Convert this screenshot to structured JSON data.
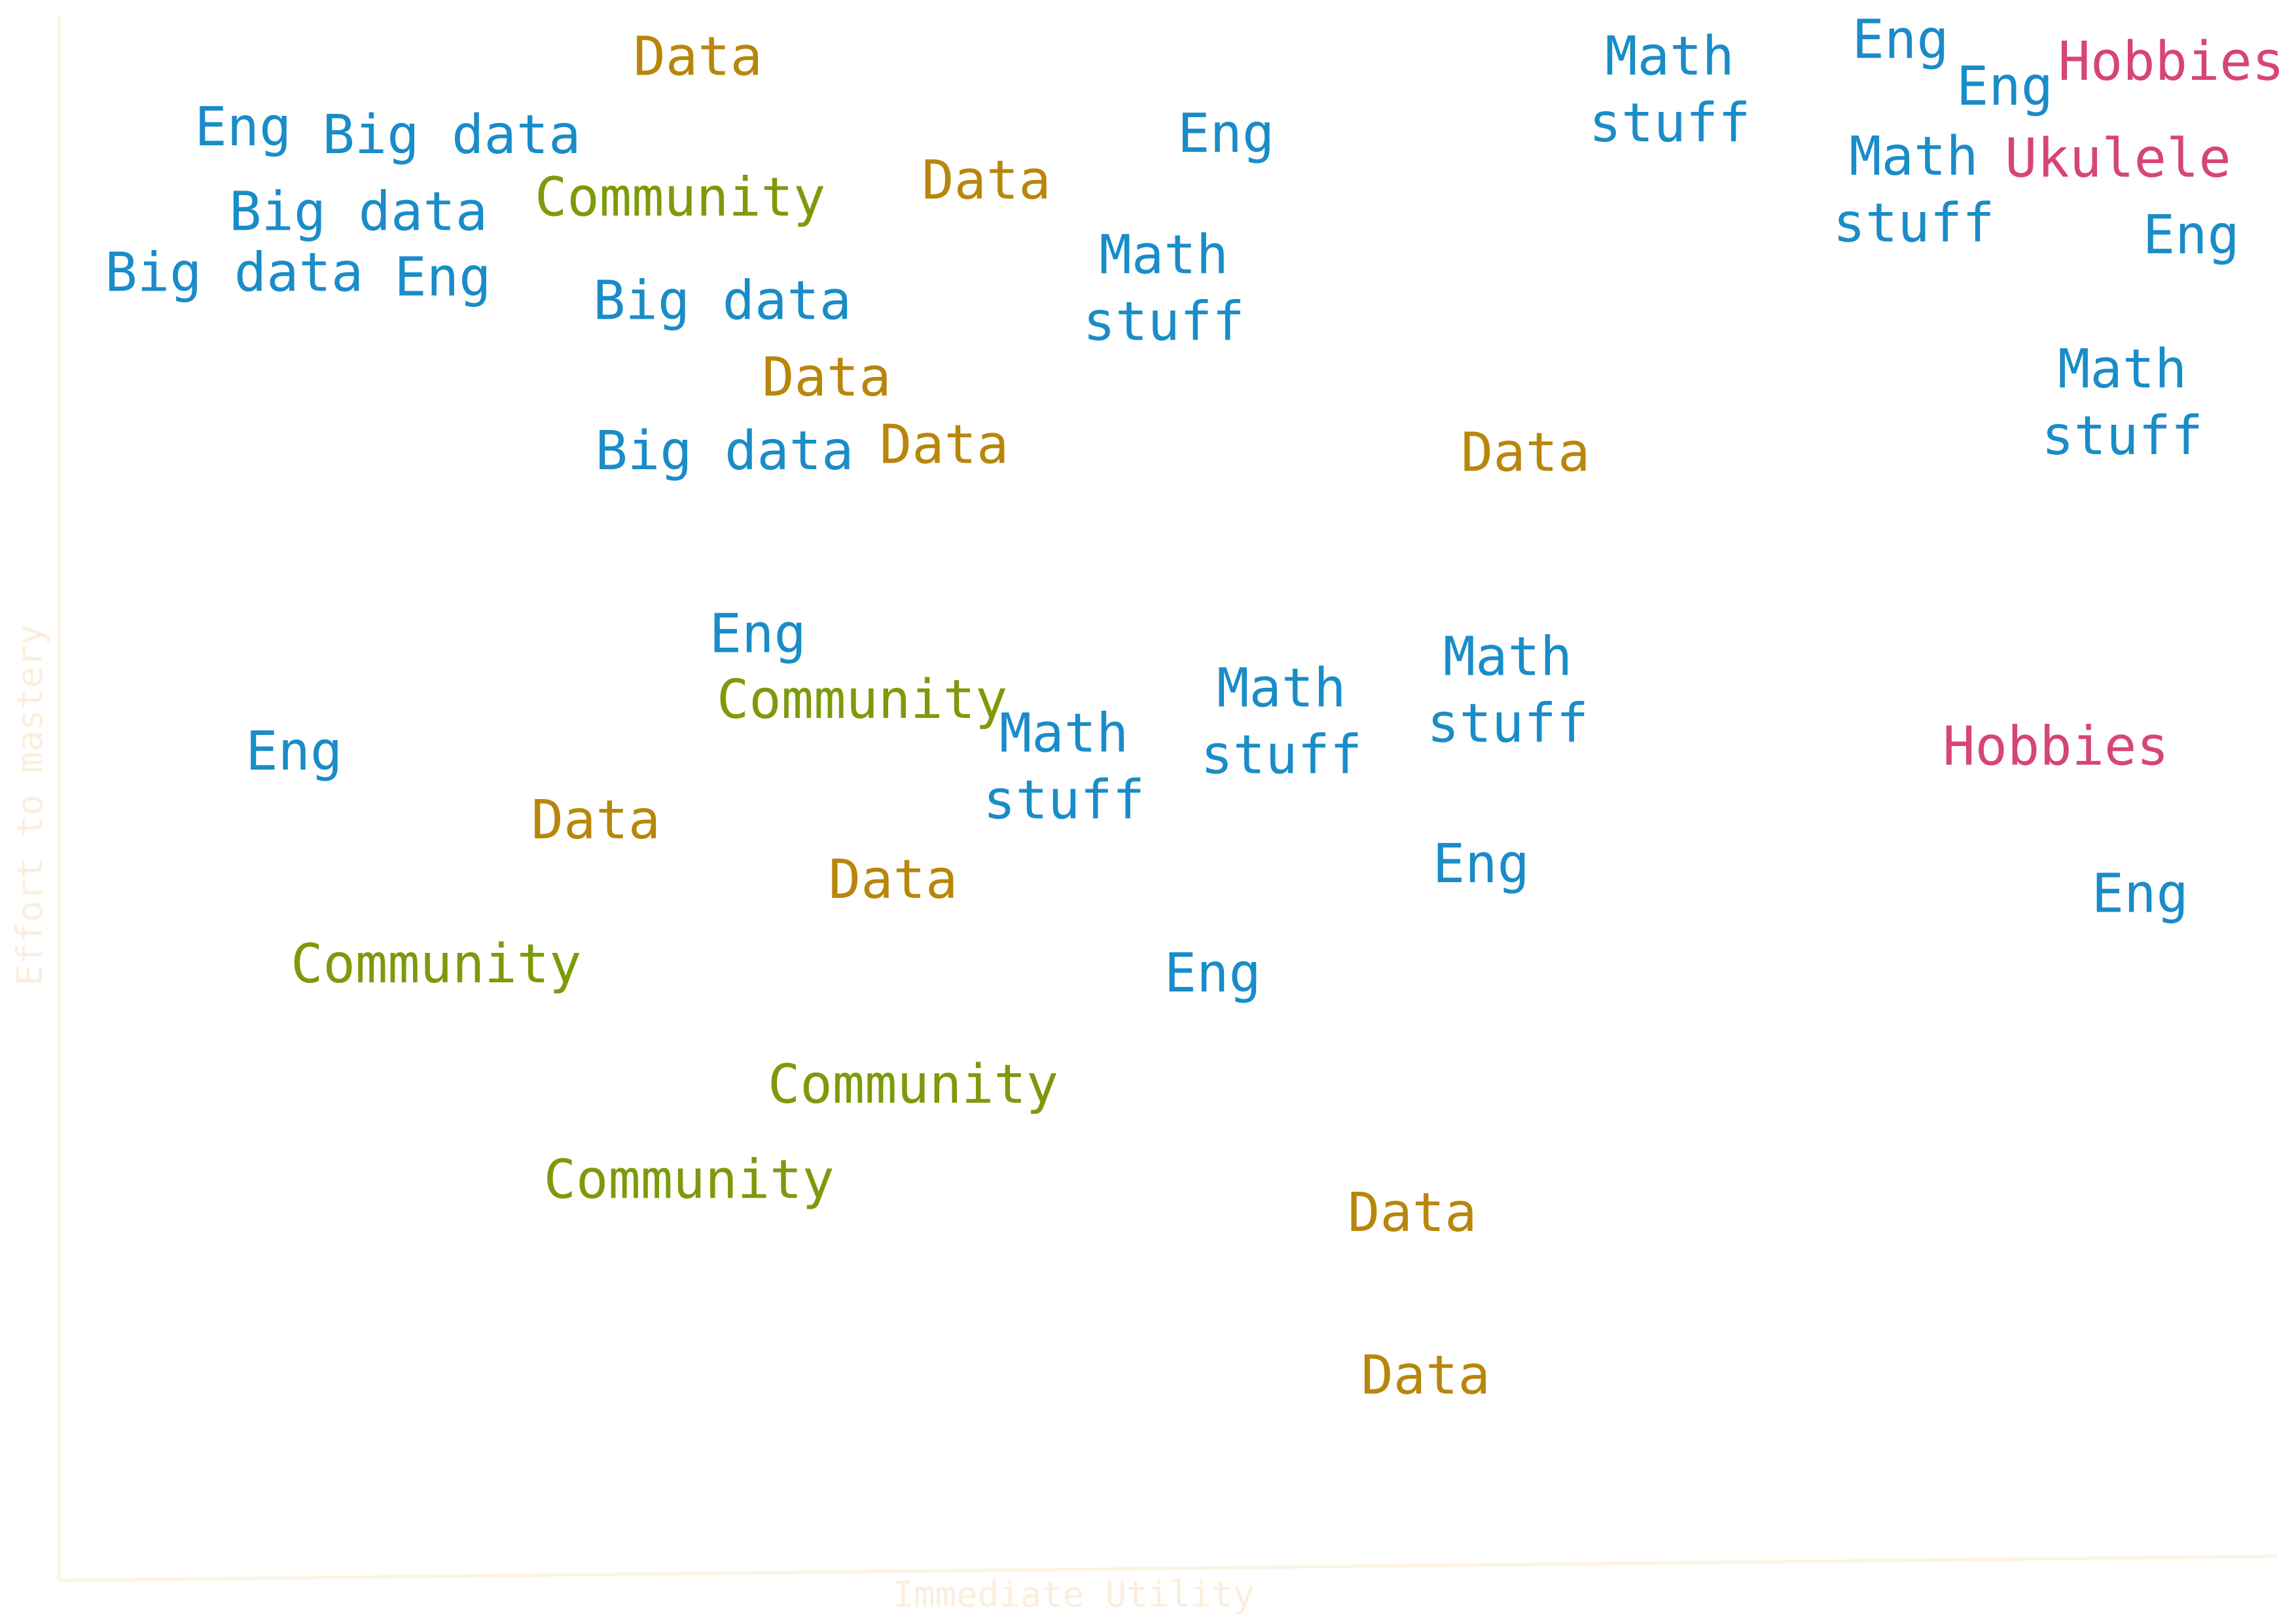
{
  "chart_data": {
    "type": "scatter",
    "title": "",
    "xlabel": "Immediate Utility",
    "ylabel": "Effort to mastery",
    "xlim": [
      0,
      100
    ],
    "ylim": [
      0,
      100
    ],
    "grid": false,
    "legend": "none",
    "categories": {
      "Eng": "#1a8cc8",
      "Big data": "#1a8cc8",
      "Math stuff": "#1a8cc8",
      "Data": "#b8860b",
      "Community": "#7d9a0a",
      "Hobbies": "#d6457a",
      "Ukulele": "#d6457a"
    },
    "points": [
      {
        "label": "Data",
        "category": "Data",
        "x": 28.8,
        "y": 97.4
      },
      {
        "label": "Eng",
        "category": "Eng",
        "x": 8.3,
        "y": 92.9
      },
      {
        "label": "Big data",
        "category": "Big data",
        "x": 17.7,
        "y": 92.4
      },
      {
        "label": "Community",
        "category": "Community",
        "x": 28.0,
        "y": 88.4
      },
      {
        "label": "Data",
        "category": "Data",
        "x": 41.8,
        "y": 89.5
      },
      {
        "label": "Eng",
        "category": "Eng",
        "x": 52.6,
        "y": 92.5
      },
      {
        "label": "Math stuff",
        "category": "Math stuff",
        "x": 72.6,
        "y": 95.3
      },
      {
        "label": "Eng",
        "category": "Eng",
        "x": 83.0,
        "y": 98.5
      },
      {
        "label": "Eng",
        "category": "Eng",
        "x": 87.7,
        "y": 95.5
      },
      {
        "label": "Hobbies",
        "category": "Hobbies",
        "x": 95.2,
        "y": 97.1
      },
      {
        "label": "Math stuff",
        "category": "Math stuff",
        "x": 83.6,
        "y": 88.9
      },
      {
        "label": "Ukulele",
        "category": "Ukulele",
        "x": 92.8,
        "y": 90.9
      },
      {
        "label": "Eng",
        "category": "Eng",
        "x": 96.1,
        "y": 86.0
      },
      {
        "label": "Big data",
        "category": "Big data",
        "x": 13.5,
        "y": 87.5
      },
      {
        "label": "Math stuff",
        "category": "Math stuff",
        "x": 49.8,
        "y": 82.6
      },
      {
        "label": "Big data",
        "category": "Big data",
        "x": 7.9,
        "y": 83.6
      },
      {
        "label": "Eng",
        "category": "Eng",
        "x": 17.3,
        "y": 83.3
      },
      {
        "label": "Big data",
        "category": "Big data",
        "x": 29.9,
        "y": 81.8
      },
      {
        "label": "Data",
        "category": "Data",
        "x": 34.6,
        "y": 76.9
      },
      {
        "label": "Math stuff",
        "category": "Math stuff",
        "x": 93.0,
        "y": 75.3
      },
      {
        "label": "Data",
        "category": "Data",
        "x": 39.9,
        "y": 72.6
      },
      {
        "label": "Data",
        "category": "Data",
        "x": 66.1,
        "y": 72.1
      },
      {
        "label": "Big data",
        "category": "Big data",
        "x": 30.0,
        "y": 72.2
      },
      {
        "label": "Eng",
        "category": "Eng",
        "x": 31.5,
        "y": 60.5
      },
      {
        "label": "Community",
        "category": "Community",
        "x": 36.2,
        "y": 56.3
      },
      {
        "label": "Math stuff",
        "category": "Math stuff",
        "x": 65.3,
        "y": 56.9
      },
      {
        "label": "Math stuff",
        "category": "Math stuff",
        "x": 55.1,
        "y": 54.9
      },
      {
        "label": "Math stuff",
        "category": "Math stuff",
        "x": 45.3,
        "y": 52.0
      },
      {
        "label": "Eng",
        "category": "Eng",
        "x": 10.6,
        "y": 53.0
      },
      {
        "label": "Hobbies",
        "category": "Hobbies",
        "x": 90.0,
        "y": 53.3
      },
      {
        "label": "Data",
        "category": "Data",
        "x": 24.2,
        "y": 48.6
      },
      {
        "label": "Eng",
        "category": "Eng",
        "x": 64.1,
        "y": 45.8
      },
      {
        "label": "Data",
        "category": "Data",
        "x": 37.6,
        "y": 44.8
      },
      {
        "label": "Eng",
        "category": "Eng",
        "x": 93.8,
        "y": 43.9
      },
      {
        "label": "Community",
        "category": "Community",
        "x": 17.0,
        "y": 39.4
      },
      {
        "label": "Eng",
        "category": "Eng",
        "x": 52.0,
        "y": 38.8
      },
      {
        "label": "Community",
        "category": "Community",
        "x": 38.5,
        "y": 31.7
      },
      {
        "label": "Community",
        "category": "Community",
        "x": 28.4,
        "y": 25.6
      },
      {
        "label": "Data",
        "category": "Data",
        "x": 61.0,
        "y": 23.5
      },
      {
        "label": "Data",
        "category": "Data",
        "x": 61.6,
        "y": 13.1
      }
    ]
  }
}
